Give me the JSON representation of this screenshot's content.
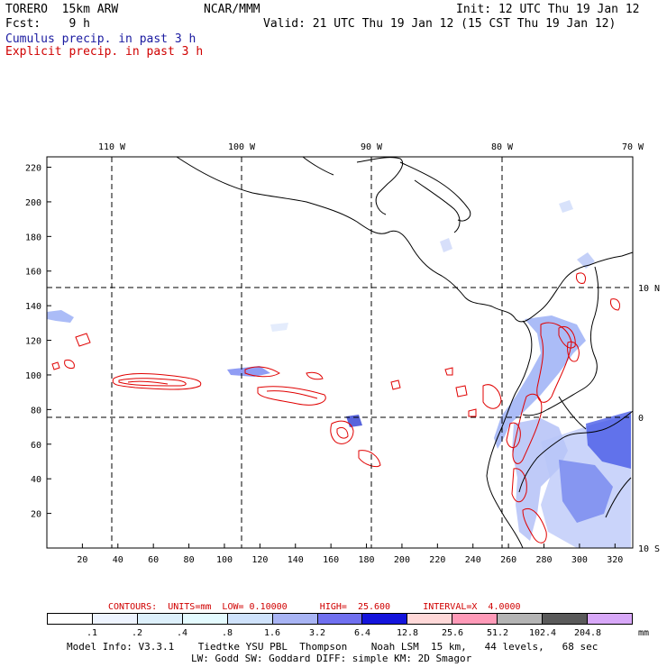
{
  "header": {
    "model": "TORERO  15km ARW",
    "org": "NCAR/MMM",
    "init": "Init: 12 UTC Thu 19 Jan 12",
    "fcst": "Fcst:    9 h",
    "valid": "Valid: 21 UTC Thu 19 Jan 12 (15 CST Thu 19 Jan 12)",
    "field1": "Cumulus precip. in past 3 h",
    "field2": "Explicit precip. in past 3 h"
  },
  "map": {
    "x_ticks": [
      "20",
      "40",
      "60",
      "80",
      "100",
      "120",
      "140",
      "160",
      "180",
      "200",
      "220",
      "240",
      "260",
      "280",
      "300",
      "320"
    ],
    "y_ticks": [
      "20",
      "40",
      "60",
      "80",
      "100",
      "120",
      "140",
      "160",
      "180",
      "200",
      "220"
    ],
    "lon_labels": [
      "110 W",
      "100 W",
      "90 W",
      "80 W",
      "70 W"
    ],
    "lat_labels": [
      "10 N",
      "0",
      "10 S"
    ]
  },
  "contours_info": {
    "text": "CONTOURS:  UNITS=mm  LOW= 0.10000      HIGH=  25.600      INTERVAL=X  4.0000"
  },
  "legend": {
    "colors": [
      "#ffffff",
      "#eef4ff",
      "#ddf0fb",
      "#e4fbff",
      "#cfe2fb",
      "#a8b4f4",
      "#7070f0",
      "#1414dc",
      "#ffd8d8",
      "#ff9ab8",
      "#b4b4b4",
      "#5a5a5a",
      "#d8a8f8"
    ],
    "labels": [
      ".1",
      ".2",
      ".4",
      ".8",
      "1.6",
      "3.2",
      "6.4",
      "12.8",
      "25.6",
      "51.2",
      "102.4",
      "204.8"
    ],
    "units": "mm"
  },
  "footer": {
    "line1": "Model Info: V3.3.1    Tiedtke YSU PBL  Thompson    Noah LSM  15 km,   44 levels,   68 sec",
    "line2": "LW: Godd SW: Goddard DIFF: simple KM: 2D Smagor"
  }
}
